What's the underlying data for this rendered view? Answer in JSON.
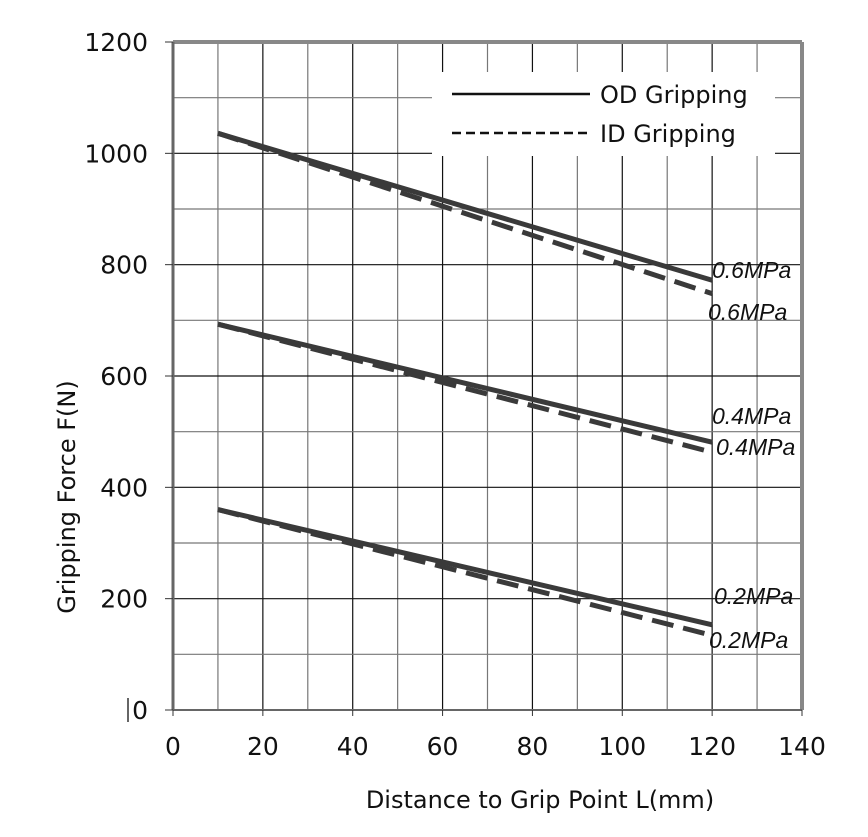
{
  "chart_data": {
    "type": "line",
    "title": "",
    "xlabel": "Distance to Grip Point  L(mm)",
    "ylabel": "Gripping Force  F(N)",
    "xlim": [
      0,
      140
    ],
    "ylim": [
      0,
      1200
    ],
    "xticks": [
      0,
      20,
      40,
      60,
      80,
      100,
      120,
      140
    ],
    "yticks": [
      0,
      200,
      400,
      600,
      800,
      1000,
      1200
    ],
    "grid": true,
    "legend": {
      "placement": "top-right",
      "entries": [
        {
          "label": "OD Gripping",
          "style": "solid"
        },
        {
          "label": "ID Gripping",
          "style": "dashed"
        }
      ]
    },
    "series": [
      {
        "name": "OD Gripping 0.6MPa",
        "style": "solid",
        "x": [
          10,
          120
        ],
        "y": [
          1036,
          772
        ],
        "label": "0.6MPa"
      },
      {
        "name": "ID Gripping 0.6MPa",
        "style": "dashed",
        "x": [
          10,
          120
        ],
        "y": [
          1036,
          748
        ],
        "label": "0.6MPa"
      },
      {
        "name": "OD Gripping 0.4MPa",
        "style": "solid",
        "x": [
          10,
          120
        ],
        "y": [
          693,
          481
        ],
        "label": "0.4MPa"
      },
      {
        "name": "ID Gripping 0.4MPa",
        "style": "dashed",
        "x": [
          10,
          120
        ],
        "y": [
          693,
          463
        ],
        "label": "0.4MPa"
      },
      {
        "name": "OD Gripping 0.2MPa",
        "style": "solid",
        "x": [
          10,
          120
        ],
        "y": [
          360,
          153
        ],
        "label": "0.2MPa"
      },
      {
        "name": "ID Gripping 0.2MPa",
        "style": "dashed",
        "x": [
          10,
          120
        ],
        "y": [
          360,
          134
        ],
        "label": "0.2MPa"
      }
    ]
  }
}
